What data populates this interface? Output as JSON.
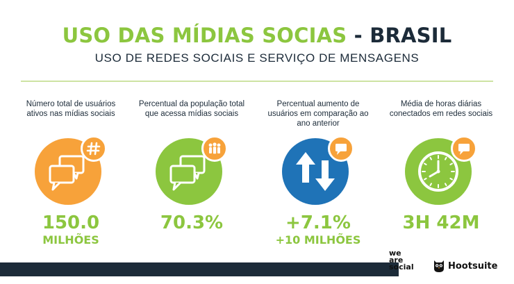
{
  "header": {
    "title_green": "USO DAS MÍDIAS SOCIAS",
    "title_sep": " - ",
    "title_navy": "BRASIL",
    "subtitle": "USO DE REDES SOCIAIS E SERVIÇO DE MENSAGENS"
  },
  "colors": {
    "green": "#8cc63f",
    "navy": "#1c2b39",
    "orange": "#f7a23a",
    "blue": "#1f73b7"
  },
  "stats": [
    {
      "label": "Número total de usuários ativos nas mídias sociais",
      "value": "150.0",
      "sub": "MILHÕES",
      "icon": "chat-bubbles-icon",
      "badge": "hashtag-icon"
    },
    {
      "label": "Percentual da população total que acessa mídias sociais",
      "value": "70.3%",
      "sub": "",
      "icon": "chat-bubbles-icon",
      "badge": "people-icon"
    },
    {
      "label": "Percentual aumento de usuários em comparação ao ano anterior",
      "value": "+7.1%",
      "sub": "+10 MILHÕES",
      "icon": "up-down-arrows-icon",
      "badge": "chat-icon"
    },
    {
      "label": "Média de horas diárias conectados em redes sociais",
      "value": "3H 42M",
      "sub": "",
      "icon": "clock-icon",
      "badge": "chat-icon"
    }
  ],
  "footer": {
    "we_are_social": [
      "we",
      "are",
      "social"
    ],
    "hootsuite": "Hootsuite"
  }
}
